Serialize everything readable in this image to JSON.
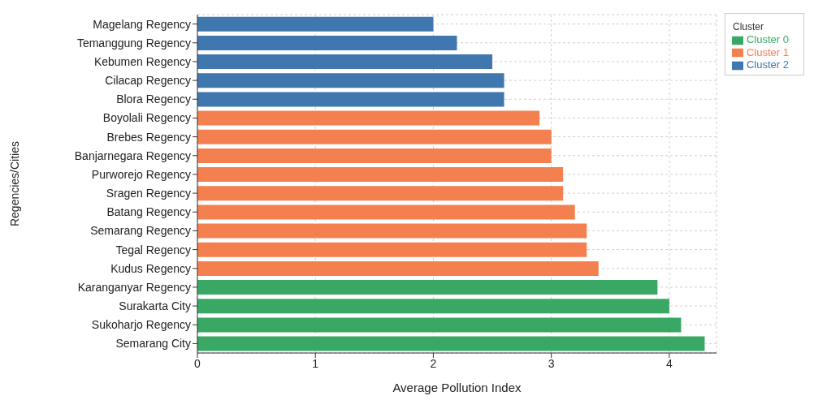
{
  "chart_data": {
    "type": "bar",
    "orientation": "horizontal",
    "stacked": true,
    "xlabel": "Average Pollution Index",
    "ylabel": "Regencies/Cities",
    "legend_title": "Cluster",
    "legend": "top right",
    "grid": true,
    "categories": [
      "Magelang Regency",
      "Temanggung Regency",
      "Kebumen Regency",
      "Cilacap Regency",
      "Blora Regency",
      "Boyolali Regency",
      "Brebes Regency",
      "Banjarnegara Regency",
      "Purworejo Regency",
      "Sragen Regency",
      "Batang Regency",
      "Semarang Regency",
      "Tegal Regency",
      "Kudus Regency",
      "Karanganyar Regency",
      "Surakarta City",
      "Sukoharjo Regency",
      "Semarang City"
    ],
    "series": [
      {
        "name": "Cluster 0",
        "color": "#3aa865",
        "values": [
          null,
          null,
          null,
          null,
          null,
          null,
          null,
          null,
          null,
          null,
          null,
          null,
          null,
          null,
          3.9,
          4.0,
          4.1,
          4.3
        ]
      },
      {
        "name": "Cluster 1",
        "color": "#f4804f",
        "values": [
          null,
          null,
          null,
          null,
          null,
          2.9,
          3.0,
          3.0,
          3.1,
          3.1,
          3.2,
          3.3,
          3.3,
          3.4,
          null,
          null,
          null,
          null
        ]
      },
      {
        "name": "Cluster 2",
        "color": "#3f77ae",
        "values": [
          2.0,
          2.2,
          2.5,
          2.6,
          2.6,
          null,
          null,
          null,
          null,
          null,
          null,
          null,
          null,
          null,
          null,
          null,
          null,
          null
        ]
      }
    ],
    "xlim": [
      0,
      4.4
    ],
    "xticks": [
      0,
      1,
      2,
      3,
      4
    ]
  }
}
